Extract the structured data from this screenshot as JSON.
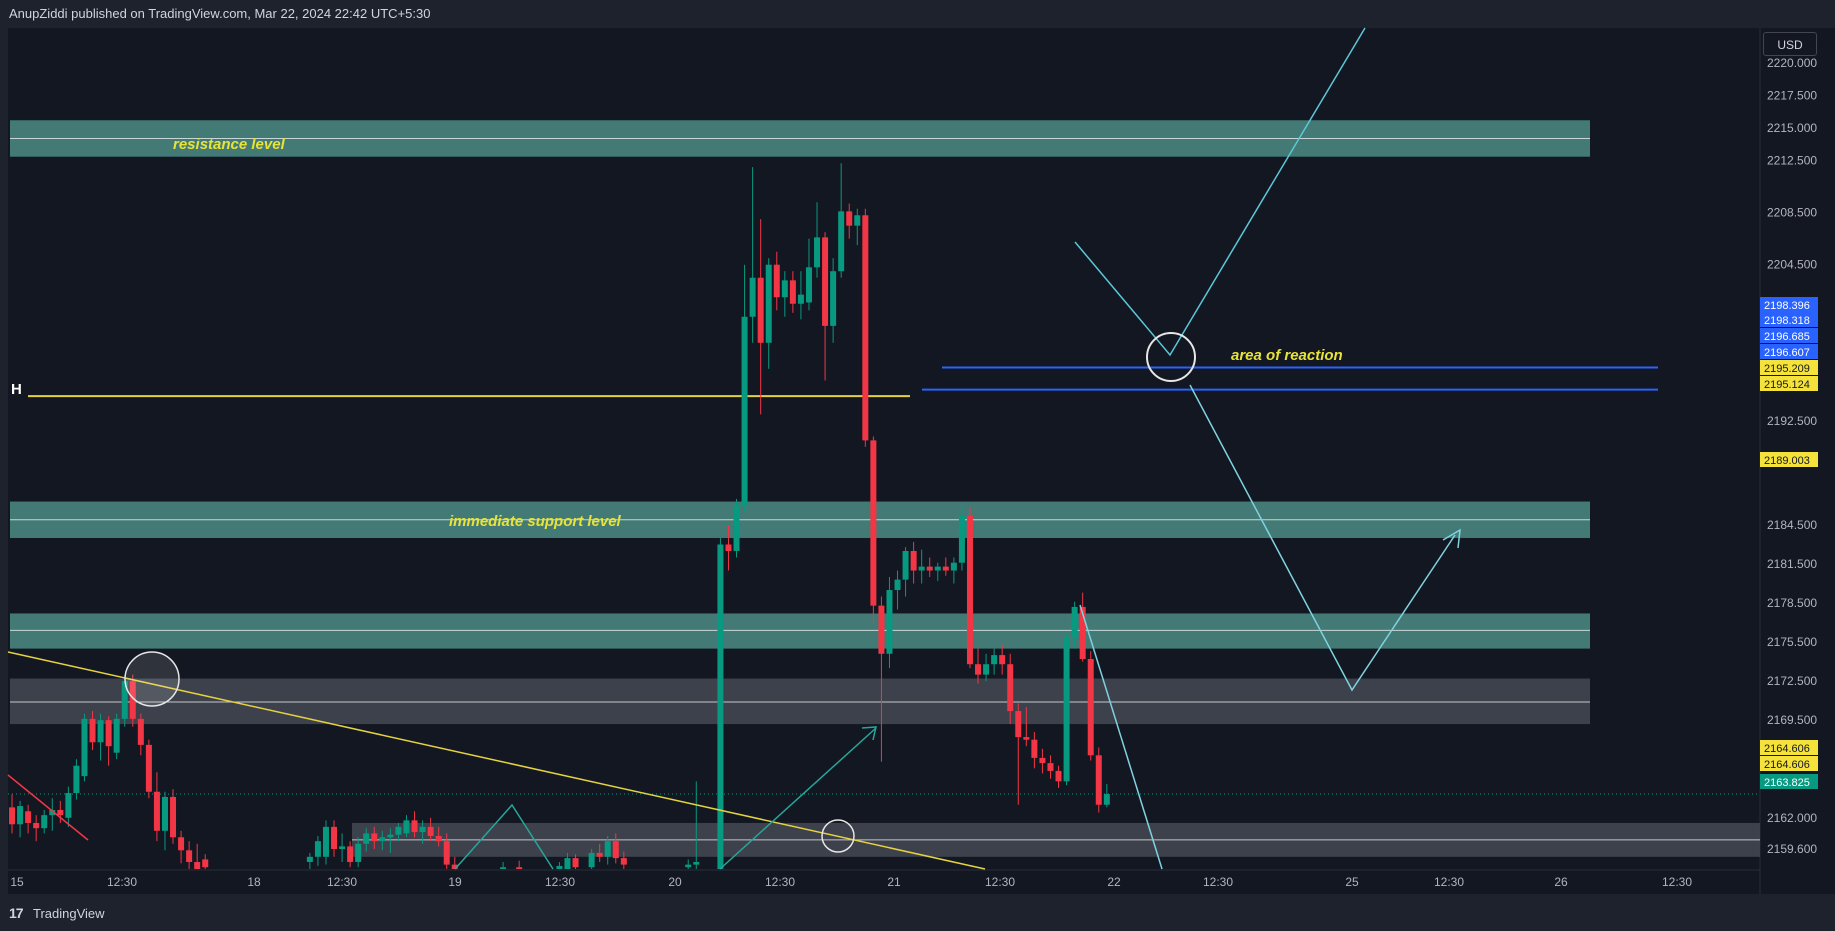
{
  "header": {
    "publisher": "AnupZiddi published on TradingView.com, Mar 22, 2024 22:42 UTC+5:30"
  },
  "footer": {
    "brand": "TradingView",
    "logo": "tradingview-logo-icon"
  },
  "currency_button": "USD",
  "colors": {
    "background": "#131722",
    "panel": "#1e222d",
    "up": "#089981",
    "down": "#f23645",
    "zone_teal": "#4c8c84",
    "zone_gray": "#434651",
    "trendline": "#e3d342",
    "projection": "#5bc8d8",
    "blue_line": "#2962ff",
    "label_yellow": "#e8e338"
  },
  "chart_data": {
    "type": "candlestick",
    "ylim": [
      2157.5,
      2224.0
    ],
    "y_ticks": [
      "2220.000",
      "2217.500",
      "2215.000",
      "2212.500",
      "2208.500",
      "2204.500",
      "2192.500",
      "2184.500",
      "2181.500",
      "2178.500",
      "2175.500",
      "2172.500",
      "2169.500",
      "2162.000",
      "2159.600"
    ],
    "x_ticks": [
      "15",
      "12:30",
      "18",
      "12:30",
      "19",
      "12:30",
      "20",
      "12:30",
      "21",
      "12:30",
      "22",
      "12:30",
      "25",
      "12:30",
      "26",
      "12:30"
    ],
    "price_badges": [
      {
        "value": "2198.396",
        "type": "blue"
      },
      {
        "value": "2198.318",
        "type": "blue"
      },
      {
        "value": "2196.685",
        "type": "blue"
      },
      {
        "value": "2196.607",
        "type": "blue"
      },
      {
        "value": "2195.209",
        "type": "yellow"
      },
      {
        "value": "2195.124",
        "type": "yellow"
      },
      {
        "value": "2189.003",
        "type": "yellow"
      },
      {
        "value": "2164.606",
        "type": "yellow"
      },
      {
        "value": "2164.606",
        "type": "yellow"
      },
      {
        "value": "2163.825",
        "type": "green"
      }
    ],
    "zones": [
      {
        "low": 2212.8,
        "high": 2215.6,
        "mid": 2214.2,
        "color": "teal",
        "label": "resistance  level"
      },
      {
        "low": 2183.5,
        "high": 2186.3,
        "mid": 2184.9,
        "color": "teal",
        "label": "immediate  support level"
      },
      {
        "low": 2175.0,
        "high": 2177.7,
        "mid": 2176.4,
        "color": "teal",
        "label": ""
      },
      {
        "low": 2169.2,
        "high": 2172.7,
        "mid": 2170.9,
        "color": "gray",
        "label": ""
      },
      {
        "low": 2159.0,
        "high": 2161.6,
        "mid": 2160.3,
        "color": "gray",
        "label": ""
      }
    ],
    "blue_lines": [
      2196.6,
      2194.9
    ],
    "h_level": {
      "value": 2194.4,
      "label": "H"
    },
    "area_label": "area  of reaction",
    "candles": [
      {
        "t": 0.5,
        "o": 2162.8,
        "h": 2163.8,
        "l": 2160.8,
        "c": 2161.5
      },
      {
        "t": 1.5,
        "o": 2161.5,
        "h": 2163.3,
        "l": 2160.5,
        "c": 2162.9
      },
      {
        "t": 2.5,
        "o": 2162.5,
        "h": 2163.0,
        "l": 2160.8,
        "c": 2161.6
      },
      {
        "t": 3.5,
        "o": 2161.6,
        "h": 2162.2,
        "l": 2160.2,
        "c": 2161.2
      },
      {
        "t": 4.5,
        "o": 2161.2,
        "h": 2162.6,
        "l": 2160.8,
        "c": 2162.2
      },
      {
        "t": 5.5,
        "o": 2162.2,
        "h": 2163.5,
        "l": 2161.0,
        "c": 2162.6
      },
      {
        "t": 6.5,
        "o": 2162.6,
        "h": 2163.3,
        "l": 2161.6,
        "c": 2162.2
      },
      {
        "t": 7.5,
        "o": 2162.0,
        "h": 2164.4,
        "l": 2161.3,
        "c": 2163.9
      },
      {
        "t": 8.5,
        "o": 2163.9,
        "h": 2166.5,
        "l": 2163.4,
        "c": 2166.0
      },
      {
        "t": 9.5,
        "o": 2165.2,
        "h": 2170.0,
        "l": 2164.8,
        "c": 2169.6
      },
      {
        "t": 10.5,
        "o": 2169.6,
        "h": 2170.2,
        "l": 2167.2,
        "c": 2167.8
      },
      {
        "t": 11.5,
        "o": 2167.8,
        "h": 2170.0,
        "l": 2166.4,
        "c": 2169.5
      },
      {
        "t": 12.5,
        "o": 2169.5,
        "h": 2169.8,
        "l": 2166.0,
        "c": 2167.5
      },
      {
        "t": 13.5,
        "o": 2167.0,
        "h": 2170.0,
        "l": 2166.5,
        "c": 2169.6
      },
      {
        "t": 14.5,
        "o": 2169.6,
        "h": 2172.9,
        "l": 2169.0,
        "c": 2172.5
      },
      {
        "t": 15.5,
        "o": 2172.5,
        "h": 2173.0,
        "l": 2169.0,
        "c": 2169.6
      },
      {
        "t": 16.5,
        "o": 2169.6,
        "h": 2170.0,
        "l": 2166.8,
        "c": 2167.6
      },
      {
        "t": 17.5,
        "o": 2167.6,
        "h": 2168.0,
        "l": 2163.5,
        "c": 2164.0
      },
      {
        "t": 18.5,
        "o": 2164.0,
        "h": 2165.5,
        "l": 2160.2,
        "c": 2161.0
      },
      {
        "t": 19.5,
        "o": 2161.0,
        "h": 2164.0,
        "l": 2159.5,
        "c": 2163.6
      },
      {
        "t": 20.5,
        "o": 2163.6,
        "h": 2164.2,
        "l": 2160.0,
        "c": 2160.5
      },
      {
        "t": 21.5,
        "o": 2160.5,
        "h": 2161.0,
        "l": 2158.5,
        "c": 2159.5
      },
      {
        "t": 22.5,
        "o": 2159.5,
        "h": 2160.2,
        "l": 2158.0,
        "c": 2158.6
      },
      {
        "t": 23.5,
        "o": 2158.6,
        "h": 2160.0,
        "l": 2157.0,
        "c": 2157.8
      },
      {
        "t": 24.5,
        "o": 2158.8,
        "h": 2159.2,
        "l": 2157.6,
        "c": 2158.2
      },
      {
        "t": 37.5,
        "o": 2158.6,
        "h": 2159.3,
        "l": 2158.0,
        "c": 2159.0
      },
      {
        "t": 38.5,
        "o": 2159.0,
        "h": 2160.6,
        "l": 2158.3,
        "c": 2160.2
      },
      {
        "t": 39.5,
        "o": 2159.0,
        "h": 2161.8,
        "l": 2158.4,
        "c": 2161.3
      },
      {
        "t": 40.5,
        "o": 2161.3,
        "h": 2161.8,
        "l": 2159.0,
        "c": 2159.6
      },
      {
        "t": 41.5,
        "o": 2159.6,
        "h": 2160.8,
        "l": 2158.6,
        "c": 2159.8
      },
      {
        "t": 42.5,
        "o": 2159.8,
        "h": 2160.2,
        "l": 2158.2,
        "c": 2158.6
      },
      {
        "t": 43.5,
        "o": 2158.6,
        "h": 2160.5,
        "l": 2158.2,
        "c": 2160.0
      },
      {
        "t": 44.5,
        "o": 2160.0,
        "h": 2161.2,
        "l": 2159.4,
        "c": 2160.8
      },
      {
        "t": 45.5,
        "o": 2160.8,
        "h": 2161.3,
        "l": 2159.6,
        "c": 2160.2
      },
      {
        "t": 46.5,
        "o": 2160.2,
        "h": 2161.0,
        "l": 2159.5,
        "c": 2160.5
      },
      {
        "t": 47.5,
        "o": 2160.5,
        "h": 2161.2,
        "l": 2159.3,
        "c": 2160.7
      },
      {
        "t": 48.5,
        "o": 2160.7,
        "h": 2161.6,
        "l": 2160.2,
        "c": 2161.3
      },
      {
        "t": 49.5,
        "o": 2160.8,
        "h": 2162.2,
        "l": 2160.5,
        "c": 2161.8
      },
      {
        "t": 50.5,
        "o": 2161.8,
        "h": 2162.5,
        "l": 2160.5,
        "c": 2160.9
      },
      {
        "t": 51.5,
        "o": 2160.9,
        "h": 2161.8,
        "l": 2160.0,
        "c": 2161.3
      },
      {
        "t": 52.5,
        "o": 2161.3,
        "h": 2162.0,
        "l": 2160.2,
        "c": 2160.6
      },
      {
        "t": 53.5,
        "o": 2160.6,
        "h": 2161.3,
        "l": 2159.8,
        "c": 2160.2
      },
      {
        "t": 54.5,
        "o": 2160.2,
        "h": 2160.8,
        "l": 2157.8,
        "c": 2158.4
      },
      {
        "t": 55.5,
        "o": 2158.4,
        "h": 2159.0,
        "l": 2157.4,
        "c": 2157.8
      },
      {
        "t": 61.5,
        "o": 2158.0,
        "h": 2158.6,
        "l": 2157.6,
        "c": 2158.2
      },
      {
        "t": 63.5,
        "o": 2158.2,
        "h": 2158.7,
        "l": 2157.7,
        "c": 2158.0
      },
      {
        "t": 68.5,
        "o": 2158.0,
        "h": 2158.6,
        "l": 2157.6,
        "c": 2158.3
      },
      {
        "t": 69.5,
        "o": 2157.8,
        "h": 2159.3,
        "l": 2157.4,
        "c": 2158.9
      },
      {
        "t": 70.5,
        "o": 2158.9,
        "h": 2159.2,
        "l": 2157.8,
        "c": 2158.2
      },
      {
        "t": 72.5,
        "o": 2158.2,
        "h": 2159.6,
        "l": 2157.8,
        "c": 2159.3
      },
      {
        "t": 73.5,
        "o": 2159.3,
        "h": 2160.0,
        "l": 2158.6,
        "c": 2159.0
      },
      {
        "t": 74.5,
        "o": 2159.0,
        "h": 2160.6,
        "l": 2158.4,
        "c": 2160.2
      },
      {
        "t": 75.5,
        "o": 2160.2,
        "h": 2160.8,
        "l": 2158.5,
        "c": 2158.9
      },
      {
        "t": 76.5,
        "o": 2158.9,
        "h": 2159.4,
        "l": 2158.0,
        "c": 2158.4
      },
      {
        "t": 84.5,
        "o": 2158.2,
        "h": 2158.8,
        "l": 2157.8,
        "c": 2158.4
      },
      {
        "t": 85.5,
        "o": 2158.4,
        "h": 2164.8,
        "l": 2157.9,
        "c": 2158.6
      },
      {
        "t": 88.5,
        "o": 2157.9,
        "h": 2183.5,
        "l": 2157.2,
        "c": 2183.0
      },
      {
        "t": 89.5,
        "o": 2183.0,
        "h": 2184.5,
        "l": 2181.0,
        "c": 2182.5
      },
      {
        "t": 90.5,
        "o": 2182.5,
        "h": 2186.5,
        "l": 2182.0,
        "c": 2186.0
      },
      {
        "t": 91.5,
        "o": 2186.0,
        "h": 2204.5,
        "l": 2185.5,
        "c": 2200.5
      },
      {
        "t": 92.5,
        "o": 2200.5,
        "h": 2212.0,
        "l": 2198.5,
        "c": 2203.5
      },
      {
        "t": 93.5,
        "o": 2203.5,
        "h": 2208.0,
        "l": 2193.0,
        "c": 2198.5
      },
      {
        "t": 94.5,
        "o": 2198.5,
        "h": 2205.0,
        "l": 2196.5,
        "c": 2204.5
      },
      {
        "t": 95.5,
        "o": 2204.5,
        "h": 2205.5,
        "l": 2201.0,
        "c": 2202.0
      },
      {
        "t": 96.5,
        "o": 2202.0,
        "h": 2204.0,
        "l": 2200.5,
        "c": 2203.3
      },
      {
        "t": 97.5,
        "o": 2203.3,
        "h": 2204.0,
        "l": 2200.8,
        "c": 2201.5
      },
      {
        "t": 98.5,
        "o": 2201.5,
        "h": 2204.0,
        "l": 2200.3,
        "c": 2202.2
      },
      {
        "t": 99.5,
        "o": 2201.6,
        "h": 2206.5,
        "l": 2201.0,
        "c": 2204.3
      },
      {
        "t": 100.5,
        "o": 2204.3,
        "h": 2209.3,
        "l": 2203.5,
        "c": 2206.6
      },
      {
        "t": 101.5,
        "o": 2206.6,
        "h": 2207.0,
        "l": 2195.6,
        "c": 2199.8
      },
      {
        "t": 102.5,
        "o": 2199.8,
        "h": 2205.0,
        "l": 2198.5,
        "c": 2204.0
      },
      {
        "t": 103.5,
        "o": 2204.0,
        "h": 2212.3,
        "l": 2203.5,
        "c": 2208.6
      },
      {
        "t": 104.5,
        "o": 2208.6,
        "h": 2209.2,
        "l": 2206.5,
        "c": 2207.5
      },
      {
        "t": 105.5,
        "o": 2207.5,
        "h": 2208.8,
        "l": 2206.0,
        "c": 2208.3
      },
      {
        "t": 106.5,
        "o": 2208.3,
        "h": 2208.8,
        "l": 2190.5,
        "c": 2191.0
      },
      {
        "t": 107.5,
        "o": 2191.0,
        "h": 2191.3,
        "l": 2177.0,
        "c": 2178.3
      },
      {
        "t": 108.5,
        "o": 2178.3,
        "h": 2179.0,
        "l": 2166.3,
        "c": 2174.6
      },
      {
        "t": 109.5,
        "o": 2174.6,
        "h": 2180.5,
        "l": 2173.5,
        "c": 2179.5
      },
      {
        "t": 110.5,
        "o": 2179.5,
        "h": 2181.0,
        "l": 2178.0,
        "c": 2180.3
      },
      {
        "t": 111.5,
        "o": 2180.3,
        "h": 2182.8,
        "l": 2179.0,
        "c": 2182.5
      },
      {
        "t": 112.5,
        "o": 2182.5,
        "h": 2183.2,
        "l": 2180.0,
        "c": 2181.0
      },
      {
        "t": 113.5,
        "o": 2181.0,
        "h": 2182.6,
        "l": 2180.0,
        "c": 2181.3
      },
      {
        "t": 114.5,
        "o": 2181.3,
        "h": 2182.0,
        "l": 2180.5,
        "c": 2181.0
      },
      {
        "t": 115.5,
        "o": 2181.0,
        "h": 2181.6,
        "l": 2180.2,
        "c": 2181.3
      },
      {
        "t": 116.5,
        "o": 2181.3,
        "h": 2182.0,
        "l": 2180.6,
        "c": 2181.0
      },
      {
        "t": 117.5,
        "o": 2181.0,
        "h": 2182.0,
        "l": 2180.0,
        "c": 2181.6
      },
      {
        "t": 118.5,
        "o": 2181.6,
        "h": 2186.0,
        "l": 2181.0,
        "c": 2185.2
      },
      {
        "t": 119.5,
        "o": 2185.2,
        "h": 2185.8,
        "l": 2173.5,
        "c": 2173.8
      },
      {
        "t": 120.5,
        "o": 2173.8,
        "h": 2175.0,
        "l": 2172.3,
        "c": 2173.0
      },
      {
        "t": 121.5,
        "o": 2173.0,
        "h": 2174.6,
        "l": 2172.5,
        "c": 2173.8
      },
      {
        "t": 122.5,
        "o": 2173.8,
        "h": 2175.0,
        "l": 2173.0,
        "c": 2174.5
      },
      {
        "t": 123.5,
        "o": 2174.5,
        "h": 2175.3,
        "l": 2173.0,
        "c": 2173.8
      },
      {
        "t": 124.5,
        "o": 2173.8,
        "h": 2174.6,
        "l": 2169.2,
        "c": 2170.2
      },
      {
        "t": 125.5,
        "o": 2170.2,
        "h": 2170.8,
        "l": 2163.0,
        "c": 2168.2
      },
      {
        "t": 126.5,
        "o": 2168.2,
        "h": 2170.5,
        "l": 2167.5,
        "c": 2168.0
      },
      {
        "t": 127.5,
        "o": 2168.0,
        "h": 2168.6,
        "l": 2165.8,
        "c": 2166.6
      },
      {
        "t": 128.5,
        "o": 2166.6,
        "h": 2167.3,
        "l": 2165.4,
        "c": 2166.2
      },
      {
        "t": 129.5,
        "o": 2166.2,
        "h": 2166.8,
        "l": 2165.0,
        "c": 2165.6
      },
      {
        "t": 130.5,
        "o": 2165.6,
        "h": 2166.0,
        "l": 2164.3,
        "c": 2164.8
      },
      {
        "t": 131.5,
        "o": 2164.8,
        "h": 2176.2,
        "l": 2164.5,
        "c": 2175.8
      },
      {
        "t": 132.5,
        "o": 2175.8,
        "h": 2178.6,
        "l": 2175.0,
        "c": 2178.2
      },
      {
        "t": 133.5,
        "o": 2178.2,
        "h": 2179.3,
        "l": 2174.0,
        "c": 2174.2
      },
      {
        "t": 134.5,
        "o": 2174.2,
        "h": 2174.8,
        "l": 2166.4,
        "c": 2166.8
      },
      {
        "t": 135.5,
        "o": 2166.8,
        "h": 2167.4,
        "l": 2162.4,
        "c": 2163.0
      },
      {
        "t": 136.5,
        "o": 2163.0,
        "h": 2164.6,
        "l": 2162.8,
        "c": 2163.825
      }
    ]
  }
}
